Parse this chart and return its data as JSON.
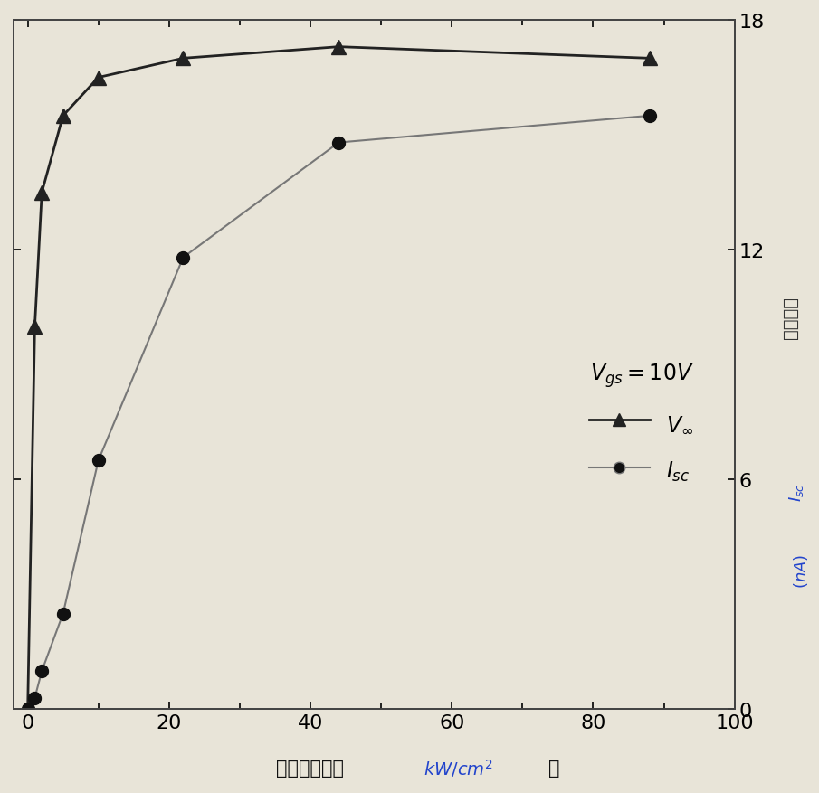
{
  "x_voc": [
    0,
    1,
    2,
    5,
    10,
    22,
    44,
    88
  ],
  "y_voc": [
    0.0,
    10.0,
    13.5,
    15.5,
    16.5,
    17.0,
    17.3,
    17.0
  ],
  "x_isc": [
    0,
    1,
    2,
    5,
    10,
    22,
    44,
    88
  ],
  "y_isc": [
    0.0,
    0.3,
    1.0,
    2.5,
    6.5,
    11.8,
    14.8,
    15.5
  ],
  "xlim": [
    -2,
    100
  ],
  "ylim": [
    0,
    18
  ],
  "yticks": [
    0,
    6,
    12,
    18
  ],
  "xticks": [
    0,
    20,
    40,
    60,
    80,
    100
  ],
  "voc_color": "#222222",
  "isc_color": "#777777",
  "bg_color": "#e8e4d8",
  "fig_bg": "#e8e4d8",
  "right_label_color": "#2244cc",
  "tick_fontsize": 16,
  "legend_fontsize": 17,
  "marker_size_voc": 11,
  "marker_size_isc": 10,
  "linewidth_voc": 2.0,
  "linewidth_isc": 1.5,
  "xlabel_chinese": "光功率密度（",
  "xlabel_close": "）",
  "ylabel_chinese": "短路电流"
}
